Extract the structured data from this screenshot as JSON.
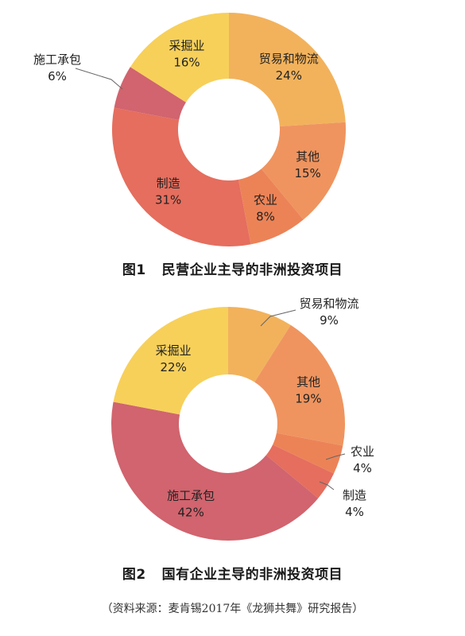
{
  "chart_data": [
    {
      "type": "pie",
      "donut": true,
      "title": "民营企业主导的非洲投资项目",
      "figure_label": "图1",
      "slices": [
        {
          "label": "贸易和物流",
          "value": 24,
          "value_text": "24%",
          "color": "#F2B25C"
        },
        {
          "label": "其他",
          "value": 15,
          "value_text": "15%",
          "color": "#EF945F"
        },
        {
          "label": "农业",
          "value": 8,
          "value_text": "8%",
          "color": "#EC8357"
        },
        {
          "label": "制造",
          "value": 31,
          "value_text": "31%",
          "color": "#E56E5E"
        },
        {
          "label": "施工承包",
          "value": 6,
          "value_text": "6%",
          "color": "#D1646E"
        },
        {
          "label": "采掘业",
          "value": 16,
          "value_text": "16%",
          "color": "#F7D05A"
        }
      ]
    },
    {
      "type": "pie",
      "donut": true,
      "title": "国有企业主导的非洲投资项目",
      "figure_label": "图2",
      "slices": [
        {
          "label": "贸易和物流",
          "value": 9,
          "value_text": "9%",
          "color": "#F2B25C"
        },
        {
          "label": "其他",
          "value": 19,
          "value_text": "19%",
          "color": "#EF945F"
        },
        {
          "label": "农业",
          "value": 4,
          "value_text": "4%",
          "color": "#EC8357"
        },
        {
          "label": "制造",
          "value": 4,
          "value_text": "4%",
          "color": "#E56E5E"
        },
        {
          "label": "施工承包",
          "value": 42,
          "value_text": "42%",
          "color": "#D1646E"
        },
        {
          "label": "采掘业",
          "value": 22,
          "value_text": "22%",
          "color": "#F7D05A"
        }
      ]
    }
  ],
  "source_note": "（资料来源：麦肯锡2017年《龙狮共舞》研究报告）"
}
